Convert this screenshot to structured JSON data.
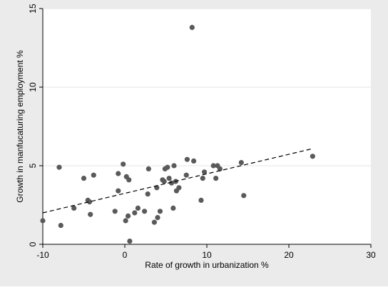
{
  "chart_data": {
    "type": "scatter",
    "title": "",
    "xlabel": "Rate of growth in urbanization %",
    "ylabel": "Growth in manfucaturing employment %",
    "xlim": [
      -10,
      30
    ],
    "ylim": [
      0,
      15
    ],
    "x_ticks": [
      -10,
      0,
      10,
      20,
      30
    ],
    "y_ticks": [
      0,
      5,
      10,
      15
    ],
    "grid": "horizontal",
    "legend": "none",
    "colors": {
      "outer_background": "#ebebeb",
      "plot_background": "#ffffff",
      "points": "#5a5a5a",
      "fit_line": "#000000",
      "gridlines": "#e6e6e6"
    },
    "points": [
      [
        -10,
        1.5
      ],
      [
        -8,
        4.9
      ],
      [
        -7.8,
        1.2
      ],
      [
        -6.2,
        2.3
      ],
      [
        -5,
        4.2
      ],
      [
        -4.5,
        2.8
      ],
      [
        -4.3,
        2.7
      ],
      [
        -4.2,
        1.9
      ],
      [
        -3.8,
        4.4
      ],
      [
        -1.2,
        2.1
      ],
      [
        -0.8,
        3.4
      ],
      [
        -0.8,
        4.5
      ],
      [
        -0.2,
        5.1
      ],
      [
        0.1,
        1.5
      ],
      [
        0.2,
        4.3
      ],
      [
        0.4,
        1.8
      ],
      [
        0.5,
        4.1
      ],
      [
        0.6,
        0.2
      ],
      [
        1.2,
        2.0
      ],
      [
        1.6,
        2.3
      ],
      [
        2.4,
        2.1
      ],
      [
        2.8,
        3.2
      ],
      [
        2.9,
        4.8
      ],
      [
        3.6,
        1.4
      ],
      [
        3.9,
        3.6
      ],
      [
        4.0,
        1.7
      ],
      [
        4.3,
        2.1
      ],
      [
        4.6,
        4.1
      ],
      [
        4.8,
        4.0
      ],
      [
        4.9,
        4.8
      ],
      [
        5.2,
        4.9
      ],
      [
        5.4,
        4.2
      ],
      [
        5.7,
        3.9
      ],
      [
        5.9,
        2.3
      ],
      [
        6.0,
        5.0
      ],
      [
        6.2,
        4.0
      ],
      [
        6.3,
        3.4
      ],
      [
        6.6,
        3.6
      ],
      [
        7.5,
        4.4
      ],
      [
        7.6,
        5.4
      ],
      [
        8.2,
        13.8
      ],
      [
        8.4,
        5.3
      ],
      [
        9.3,
        2.8
      ],
      [
        9.5,
        4.2
      ],
      [
        9.7,
        4.6
      ],
      [
        10.8,
        5.0
      ],
      [
        11.1,
        4.2
      ],
      [
        11.3,
        5.0
      ],
      [
        11.6,
        4.8
      ],
      [
        14.2,
        5.2
      ],
      [
        14.5,
        3.1
      ],
      [
        22.9,
        5.6
      ]
    ],
    "fit_line": {
      "x": [
        -10,
        23
      ],
      "y": [
        2.0,
        6.1
      ]
    }
  }
}
